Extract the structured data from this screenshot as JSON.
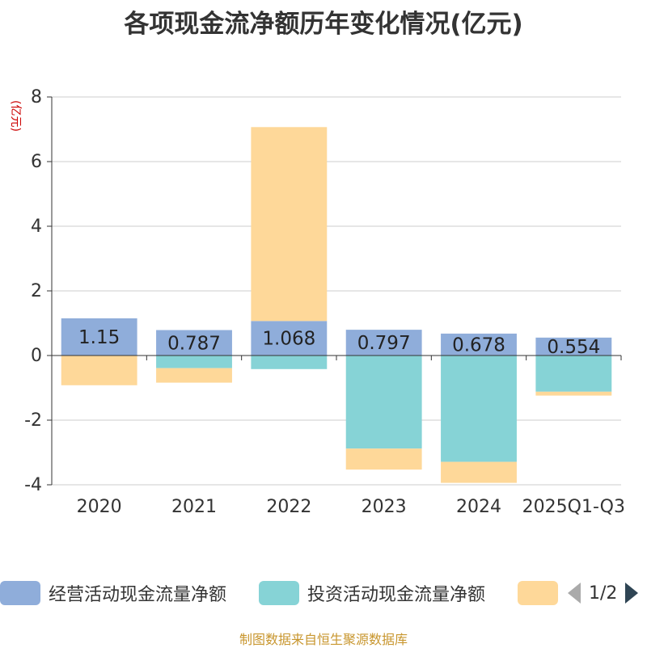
{
  "title": "各项现金流净额历年变化情况(亿元)",
  "y_unit": "(亿元)",
  "source": "制图数据来自恒生聚源数据库",
  "legend": {
    "items": [
      {
        "label": "经营活动现金流量净额",
        "color": "#8fadda"
      },
      {
        "label": "投资活动现金流量净额",
        "color": "#86d3d6"
      },
      {
        "label": "",
        "color": "#fed899"
      }
    ],
    "page": "1/2"
  },
  "chart_data": {
    "type": "bar",
    "stacked": true,
    "categories": [
      "2020",
      "2021",
      "2022",
      "2023",
      "2024",
      "2025Q1-Q3"
    ],
    "series": [
      {
        "name": "经营活动现金流量净额",
        "color": "#8fadda",
        "values": [
          1.15,
          0.787,
          1.068,
          0.797,
          0.678,
          0.554
        ],
        "show_labels": true
      },
      {
        "name": "投资活动现金流量净额",
        "color": "#86d3d6",
        "values": [
          0,
          -0.39,
          -0.42,
          -2.88,
          -3.29,
          -1.12
        ],
        "show_labels": false
      },
      {
        "color": "#fed899",
        "values": [
          -0.92,
          -0.45,
          6.0,
          -0.65,
          -0.65,
          -0.12
        ],
        "show_labels": false
      }
    ],
    "ylim": [
      -4,
      8
    ],
    "yticks": [
      8,
      6,
      4,
      2,
      0,
      -2,
      -4
    ],
    "grid": true,
    "legend_position": "bottom"
  }
}
